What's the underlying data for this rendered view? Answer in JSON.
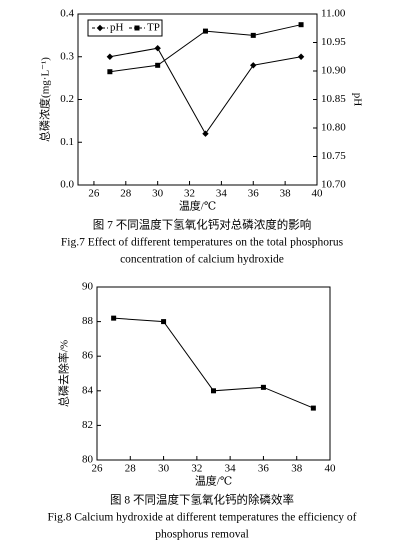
{
  "chart_data": [
    {
      "type": "line",
      "x_label": "温度/℃",
      "y_label": "总磷浓度(mg·L⁻¹)",
      "y2_label": "pH",
      "caption_cn": "图 7   不同温度下氢氧化钙对总磷浓度的影响",
      "caption_en": [
        "Fig.7    Effect of different temperatures on the total phosphorus",
        "concentration of calcium hydroxide"
      ],
      "xlim": [
        25,
        40
      ],
      "xticks": [
        26,
        28,
        30,
        32,
        34,
        36,
        38,
        40
      ],
      "ylim": [
        0,
        0.4
      ],
      "yticks": [
        {
          "value": 0,
          "label": "0.0"
        },
        0.1,
        0.2,
        0.3,
        0.4
      ],
      "y2lim": [
        10.7,
        11.0
      ],
      "y2ticks": [
        {
          "value": 10.7,
          "label": "10.70"
        },
        10.75,
        {
          "value": 10.8,
          "label": "10.80"
        },
        10.85,
        {
          "value": 10.9,
          "label": "10.90"
        },
        10.95,
        {
          "value": 11.0,
          "label": "11.00"
        }
      ],
      "legend": "upper left",
      "series": [
        {
          "name": "pH",
          "color": "#000000",
          "marker": "diamond",
          "axis": "y2",
          "x": [
            27,
            30,
            33,
            36,
            39
          ],
          "values": [
            10.925,
            10.94,
            10.79,
            10.91,
            10.925
          ]
        },
        {
          "name": "TP",
          "color": "#000000",
          "marker": "square",
          "x": [
            27,
            30,
            33,
            36,
            39
          ],
          "values": [
            0.265,
            0.28,
            0.36,
            0.35,
            0.375
          ]
        }
      ]
    },
    {
      "type": "line",
      "x_label": "温度/℃",
      "y_label": "总磷去除率/%",
      "caption_cn": "图 8   不同温度下氢氧化钙的除磷效率",
      "caption_en": [
        "Fig.8   Calcium hydroxide at different temperatures the efficiency of",
        "phosphorus removal"
      ],
      "xlim": [
        26,
        40
      ],
      "xticks": [
        26,
        28,
        30,
        32,
        34,
        36,
        38,
        40
      ],
      "ylim": [
        80,
        90
      ],
      "yticks": [
        80,
        82,
        84,
        86,
        88,
        90
      ],
      "series": [
        {
          "color": "#000000",
          "marker": "square",
          "x": [
            27,
            30,
            33,
            36,
            39
          ],
          "values": [
            88.2,
            88.0,
            84.0,
            84.2,
            83.0
          ]
        }
      ]
    }
  ]
}
